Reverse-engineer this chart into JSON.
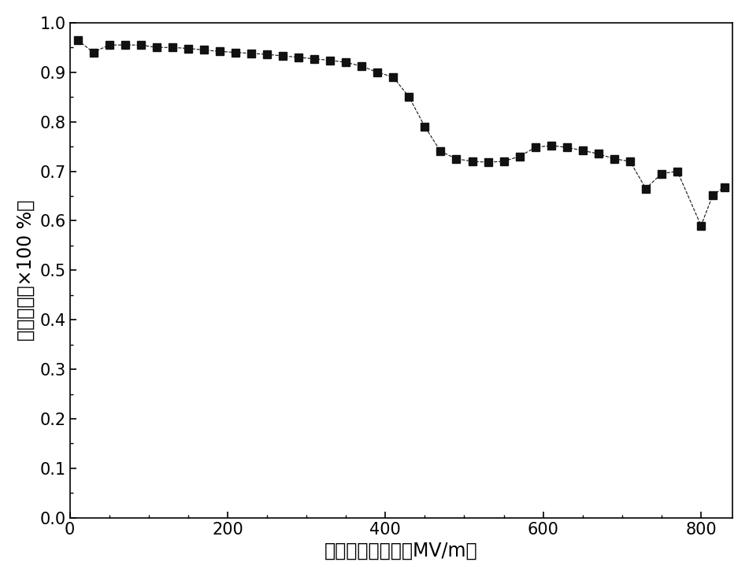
{
  "x": [
    10,
    30,
    50,
    70,
    90,
    110,
    130,
    150,
    170,
    190,
    210,
    230,
    250,
    270,
    290,
    310,
    330,
    350,
    370,
    390,
    410,
    430,
    450,
    470,
    490,
    510,
    530,
    550,
    570,
    590,
    610,
    630,
    650,
    670,
    690,
    710,
    730,
    750,
    770,
    800,
    815,
    830
  ],
  "y": [
    0.965,
    0.94,
    0.955,
    0.955,
    0.955,
    0.95,
    0.95,
    0.948,
    0.945,
    0.942,
    0.94,
    0.938,
    0.936,
    0.933,
    0.93,
    0.927,
    0.924,
    0.92,
    0.912,
    0.9,
    0.89,
    0.85,
    0.79,
    0.74,
    0.725,
    0.72,
    0.718,
    0.72,
    0.73,
    0.748,
    0.752,
    0.748,
    0.742,
    0.735,
    0.725,
    0.72,
    0.665,
    0.695,
    0.7,
    0.59,
    0.652,
    0.668
  ],
  "xlabel": "最大尬场强度　（MV/m）",
  "ylabel": "储能效率（×100 %）",
  "xlim": [
    0,
    840
  ],
  "ylim": [
    0.0,
    1.0
  ],
  "xticks": [
    0,
    200,
    400,
    600,
    800
  ],
  "yticks": [
    0.0,
    0.1,
    0.2,
    0.3,
    0.4,
    0.5,
    0.6,
    0.7,
    0.8,
    0.9,
    1.0
  ],
  "marker": "s",
  "marker_color": "#111111",
  "line_color": "#111111",
  "line_style": "--",
  "marker_size": 7,
  "line_width": 0.8,
  "xlabel_fontsize": 17,
  "ylabel_fontsize": 17,
  "tick_fontsize": 15,
  "figure_width": 9.51,
  "figure_height": 7.33
}
